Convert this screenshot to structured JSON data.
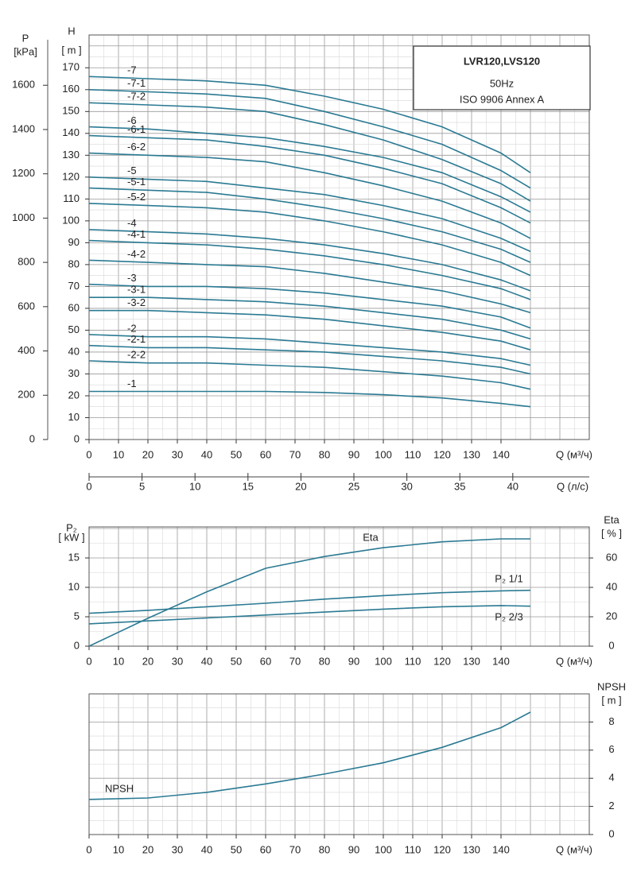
{
  "chart_data": [
    {
      "type": "line",
      "title": "LVR120,LVS120",
      "subtitle": "50Hz",
      "annotation": "ISO 9906 Annex A",
      "xlabel": "Q (м³/ч)",
      "ylabel": "H",
      "yunit": "[ m ]",
      "x": [
        0,
        20,
        40,
        60,
        80,
        100,
        120,
        140,
        150
      ],
      "xlim": [
        0,
        170
      ],
      "xticks": [
        0,
        10,
        20,
        30,
        40,
        50,
        60,
        70,
        80,
        90,
        100,
        110,
        120,
        130,
        140
      ],
      "ylim": [
        0,
        185
      ],
      "yticks": [
        0,
        10,
        20,
        30,
        40,
        50,
        60,
        70,
        80,
        90,
        100,
        110,
        120,
        130,
        140,
        150,
        160,
        170
      ],
      "p_axis": {
        "label": "P",
        "unit": "[kPa]",
        "lim": [
          0,
          1827
        ],
        "ticks": [
          0,
          200,
          400,
          600,
          800,
          1000,
          1200,
          1400,
          1600
        ]
      },
      "x2_axis": {
        "label": "Q (л/с)",
        "lim": [
          0,
          47.22
        ],
        "ticks": [
          0,
          5,
          10,
          15,
          20,
          25,
          30,
          35,
          40
        ]
      },
      "color": "#2b7a93",
      "grid": true,
      "series": [
        {
          "name": "-7",
          "values": [
            166,
            165,
            164,
            162,
            157,
            151,
            143,
            131,
            122
          ]
        },
        {
          "name": "-7-1",
          "values": [
            160,
            159,
            158,
            156,
            150,
            143,
            135,
            123,
            115
          ]
        },
        {
          "name": "-7-2",
          "values": [
            154,
            153,
            152,
            150,
            144,
            137,
            128,
            117,
            109
          ]
        },
        {
          "name": "-6",
          "values": [
            143,
            142,
            140,
            138,
            134,
            129,
            122,
            111,
            104
          ]
        },
        {
          "name": "-6-1",
          "values": [
            139,
            138,
            137,
            134,
            130,
            124,
            117,
            106,
            99
          ]
        },
        {
          "name": "-6-2",
          "values": [
            131,
            130,
            129,
            127,
            122,
            116,
            109,
            99,
            92
          ]
        },
        {
          "name": "-5",
          "values": [
            120,
            119,
            118,
            115,
            112,
            107,
            101,
            92,
            86
          ]
        },
        {
          "name": "-5-1",
          "values": [
            115,
            114,
            113,
            110,
            106,
            101,
            95,
            87,
            81
          ]
        },
        {
          "name": "-5-2",
          "values": [
            108,
            107,
            106,
            104,
            100,
            95,
            89,
            81,
            75
          ]
        },
        {
          "name": "-4",
          "values": [
            96,
            95,
            94,
            92,
            89,
            85,
            80,
            73,
            68
          ]
        },
        {
          "name": "-4-1",
          "values": [
            91,
            90,
            89,
            87,
            84,
            80,
            75,
            69,
            64
          ]
        },
        {
          "name": "-4-2",
          "values": [
            82,
            81,
            80,
            79,
            76,
            72,
            68,
            62,
            58
          ]
        },
        {
          "name": "-3",
          "values": [
            71,
            70,
            70,
            69,
            67,
            64,
            61,
            56,
            51
          ]
        },
        {
          "name": "-3-1",
          "values": [
            65,
            65,
            64,
            63,
            61,
            58,
            55,
            50,
            46
          ]
        },
        {
          "name": "-3-2",
          "values": [
            59,
            59,
            58,
            57,
            55,
            52,
            49,
            45,
            41
          ]
        },
        {
          "name": "-2",
          "values": [
            48,
            47,
            47,
            46,
            44,
            42,
            40,
            37,
            34
          ]
        },
        {
          "name": "-2-1",
          "values": [
            43,
            42,
            42,
            41,
            40,
            38,
            36,
            33,
            30
          ]
        },
        {
          "name": "-2-2",
          "values": [
            36,
            35,
            35,
            34,
            33,
            31,
            29,
            26,
            23
          ]
        },
        {
          "name": "-1",
          "values": [
            22,
            22,
            22,
            22,
            21.5,
            20.5,
            19,
            16.5,
            15
          ]
        }
      ]
    },
    {
      "type": "line",
      "xlabel": "Q (м³/ч)",
      "ylabel": "P₂",
      "yunit": "[ kW ]",
      "y2label": "Eta",
      "y2unit": "[ % ]",
      "x": [
        0,
        20,
        40,
        60,
        80,
        100,
        120,
        140,
        150
      ],
      "xlim": [
        0,
        170
      ],
      "xticks": [
        0,
        10,
        20,
        30,
        40,
        50,
        60,
        70,
        80,
        90,
        100,
        110,
        120,
        130,
        140
      ],
      "ylim": [
        0,
        20.27
      ],
      "yticks": [
        0,
        5,
        10,
        15
      ],
      "y2lim": [
        0,
        81.1
      ],
      "y2ticks": [
        0,
        20,
        40,
        60
      ],
      "color": "#2b7a93",
      "grid": true,
      "series": [
        {
          "name": "Eta",
          "axis": "y2",
          "values": [
            0,
            19,
            37,
            53,
            61,
            67,
            71,
            73,
            73
          ]
        },
        {
          "name": "P₂ 1/1",
          "values": [
            5.6,
            6.1,
            6.7,
            7.3,
            8.0,
            8.6,
            9.1,
            9.4,
            9.5
          ]
        },
        {
          "name": "P₂ 2/3",
          "values": [
            3.8,
            4.3,
            4.8,
            5.3,
            5.8,
            6.3,
            6.7,
            6.9,
            6.8
          ]
        }
      ]
    },
    {
      "type": "line",
      "xlabel": "Q (м³/ч)",
      "y2label": "NPSH",
      "y2unit": "[ m ]",
      "x": [
        0,
        20,
        40,
        60,
        80,
        100,
        120,
        140,
        150
      ],
      "xlim": [
        0,
        170
      ],
      "xticks": [
        0,
        10,
        20,
        30,
        40,
        50,
        60,
        70,
        80,
        90,
        100,
        110,
        120,
        130,
        140
      ],
      "y2lim": [
        0,
        10
      ],
      "y2ticks": [
        0,
        2,
        4,
        6,
        8
      ],
      "color": "#2b7a93",
      "grid": true,
      "series": [
        {
          "name": "NPSH",
          "axis": "y2",
          "values": [
            2.5,
            2.6,
            3.0,
            3.6,
            4.3,
            5.1,
            6.2,
            7.6,
            8.7
          ]
        }
      ]
    }
  ]
}
